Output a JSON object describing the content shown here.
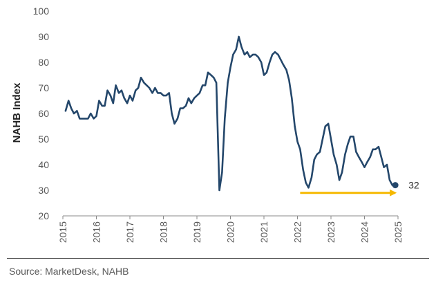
{
  "chart_data": {
    "type": "line",
    "ylabel": "NAHB Index",
    "xlabel": "",
    "ylim": [
      20,
      100
    ],
    "yticks": [
      20,
      30,
      40,
      50,
      60,
      70,
      80,
      90,
      100
    ],
    "xlim": [
      2015,
      2025
    ],
    "xticks": [
      "2015",
      "2016",
      "2017",
      "2018",
      "2019",
      "2020",
      "2021",
      "2022",
      "2023",
      "2024",
      "2025"
    ],
    "grid": false,
    "series": [
      {
        "name": "NAHB Index",
        "color": "#24476b",
        "points": [
          [
            2015.08,
            61
          ],
          [
            2015.17,
            65
          ],
          [
            2015.25,
            62
          ],
          [
            2015.33,
            60
          ],
          [
            2015.42,
            61
          ],
          [
            2015.5,
            58
          ],
          [
            2015.58,
            58
          ],
          [
            2015.67,
            58
          ],
          [
            2015.75,
            58
          ],
          [
            2015.83,
            60
          ],
          [
            2015.92,
            58
          ],
          [
            2016.0,
            59
          ],
          [
            2016.08,
            65
          ],
          [
            2016.17,
            63
          ],
          [
            2016.25,
            63
          ],
          [
            2016.33,
            69
          ],
          [
            2016.42,
            67
          ],
          [
            2016.5,
            64
          ],
          [
            2016.58,
            71
          ],
          [
            2016.67,
            68
          ],
          [
            2016.75,
            69
          ],
          [
            2016.83,
            66
          ],
          [
            2016.92,
            64
          ],
          [
            2017.0,
            67
          ],
          [
            2017.08,
            65
          ],
          [
            2017.17,
            69
          ],
          [
            2017.25,
            70
          ],
          [
            2017.33,
            74
          ],
          [
            2017.42,
            72
          ],
          [
            2017.5,
            71
          ],
          [
            2017.58,
            70
          ],
          [
            2017.67,
            68
          ],
          [
            2017.75,
            70
          ],
          [
            2017.83,
            68
          ],
          [
            2017.92,
            68
          ],
          [
            2018.0,
            67
          ],
          [
            2018.08,
            67
          ],
          [
            2018.17,
            68
          ],
          [
            2018.25,
            60
          ],
          [
            2018.33,
            56
          ],
          [
            2018.42,
            58
          ],
          [
            2018.5,
            62
          ],
          [
            2018.58,
            62
          ],
          [
            2018.67,
            63
          ],
          [
            2018.75,
            66
          ],
          [
            2018.83,
            64
          ],
          [
            2018.92,
            66
          ],
          [
            2019.0,
            67
          ],
          [
            2019.08,
            68
          ],
          [
            2019.17,
            71
          ],
          [
            2019.25,
            71
          ],
          [
            2019.33,
            76
          ],
          [
            2019.42,
            75
          ],
          [
            2019.5,
            74
          ],
          [
            2019.58,
            72
          ],
          [
            2019.67,
            30
          ],
          [
            2019.75,
            37
          ],
          [
            2019.83,
            58
          ],
          [
            2019.92,
            72
          ],
          [
            2020.0,
            78
          ],
          [
            2020.08,
            83
          ],
          [
            2020.17,
            85
          ],
          [
            2020.25,
            90
          ],
          [
            2020.33,
            86
          ],
          [
            2020.42,
            83
          ],
          [
            2020.5,
            84
          ],
          [
            2020.58,
            82
          ],
          [
            2020.67,
            83
          ],
          [
            2020.75,
            83
          ],
          [
            2020.83,
            82
          ],
          [
            2020.92,
            80
          ],
          [
            2021.0,
            75
          ],
          [
            2021.08,
            76
          ],
          [
            2021.17,
            80
          ],
          [
            2021.25,
            83
          ],
          [
            2021.33,
            84
          ],
          [
            2021.42,
            83
          ],
          [
            2021.5,
            81
          ],
          [
            2021.58,
            79
          ],
          [
            2021.67,
            77
          ],
          [
            2021.75,
            73
          ],
          [
            2021.83,
            66
          ],
          [
            2021.92,
            55
          ],
          [
            2022.0,
            49
          ],
          [
            2022.08,
            46
          ],
          [
            2022.17,
            38
          ],
          [
            2022.25,
            33
          ],
          [
            2022.33,
            31
          ],
          [
            2022.42,
            35
          ],
          [
            2022.5,
            42
          ],
          [
            2022.58,
            44
          ],
          [
            2022.67,
            45
          ],
          [
            2022.75,
            50
          ],
          [
            2022.83,
            55
          ],
          [
            2022.92,
            56
          ],
          [
            2023.0,
            50
          ],
          [
            2023.08,
            44
          ],
          [
            2023.17,
            40
          ],
          [
            2023.25,
            34
          ],
          [
            2023.33,
            37
          ],
          [
            2023.42,
            44
          ],
          [
            2023.5,
            48
          ],
          [
            2023.58,
            51
          ],
          [
            2023.67,
            51
          ],
          [
            2023.75,
            45
          ],
          [
            2023.83,
            43
          ],
          [
            2023.92,
            41
          ],
          [
            2024.0,
            39
          ],
          [
            2024.08,
            41
          ],
          [
            2024.17,
            43
          ],
          [
            2024.25,
            46
          ],
          [
            2024.33,
            46
          ],
          [
            2024.42,
            47
          ],
          [
            2024.5,
            43
          ],
          [
            2024.58,
            39
          ],
          [
            2024.67,
            40
          ],
          [
            2024.75,
            34
          ],
          [
            2024.83,
            32
          ],
          [
            2024.92,
            32
          ]
        ]
      }
    ],
    "end_marker": {
      "x": 2024.92,
      "y": 32,
      "label": "32",
      "color": "#24476b"
    },
    "annotations": [
      {
        "type": "arrow",
        "color": "#f5b800",
        "from": [
          2022.08,
          29
        ],
        "to": [
          2024.92,
          29
        ]
      }
    ],
    "source": "Source: MarketDesk, NAHB"
  }
}
